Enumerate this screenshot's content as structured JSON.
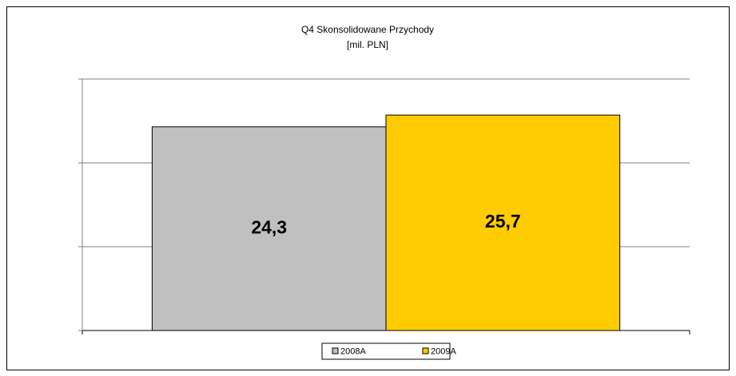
{
  "chart_data": {
    "type": "bar",
    "title": "Q4 Skonsolidowane Przychody",
    "subtitle": "[mil. PLN]",
    "categories": [
      null
    ],
    "series": [
      {
        "name": "2008A",
        "color": "#c0c0c0",
        "values": [
          24.3
        ],
        "value_labels": [
          "24,3"
        ]
      },
      {
        "name": "2009A",
        "color": "#ffcc00",
        "values": [
          25.7
        ],
        "value_labels": [
          "25,7"
        ]
      }
    ],
    "ylim": [
      0,
      30
    ],
    "yticks": [
      0,
      10,
      20,
      30
    ],
    "grid": true,
    "legend": "bottom"
  }
}
